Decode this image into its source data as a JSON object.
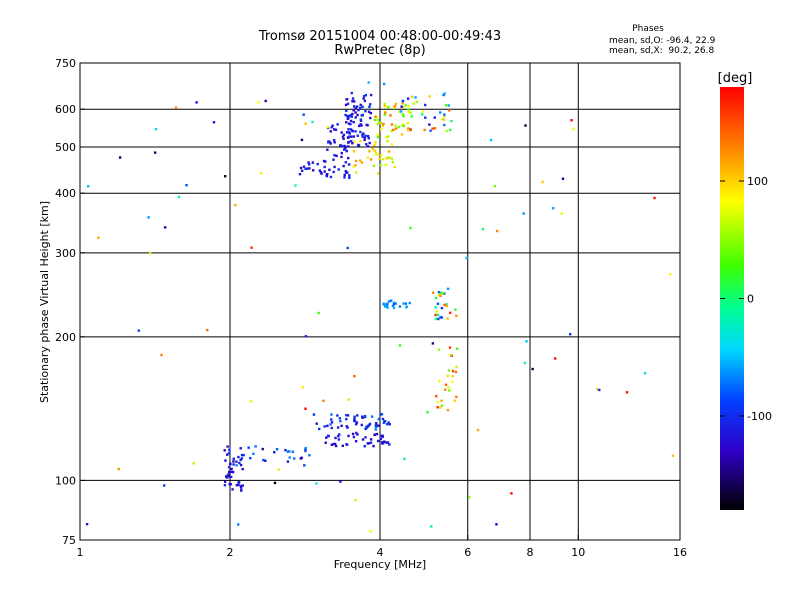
{
  "chart_data": {
    "type": "scatter",
    "title": "Tromsø 20151004 00:48:00-00:49:43",
    "subtitle": "RwPretec (8p)",
    "xlabel": "Frequency [MHz]",
    "ylabel": "Stationary phase Virtual Height [km]",
    "xscale": "log",
    "yscale": "log",
    "xlim": [
      1,
      16
    ],
    "ylim": [
      75,
      750
    ],
    "xticks": [
      1,
      2,
      4,
      6,
      8,
      10,
      16
    ],
    "yticks": [
      75,
      100,
      200,
      300,
      400,
      500,
      600,
      750
    ],
    "grid_x": [
      2,
      4,
      6,
      8,
      10
    ],
    "grid_y": [
      100,
      200,
      300,
      400,
      500,
      600
    ],
    "grid": true,
    "phase_stats": {
      "heading": "Phases",
      "line_o": "mean, sd,O: -96.4, 22.9",
      "line_x": "mean, sd,X:  90.2, 26.8"
    },
    "colorbar": {
      "label": "[deg]",
      "range": [
        -180,
        180
      ],
      "ticks": [
        100,
        0,
        -100
      ],
      "colormap": "rainbow"
    },
    "clusters": [
      {
        "xr": [
          1.95,
          2.12
        ],
        "yr": [
          95,
          118
        ],
        "n": 45,
        "pr": [
          -130,
          -100
        ]
      },
      {
        "xr": [
          2.05,
          2.9
        ],
        "yr": [
          107,
          118
        ],
        "n": 25,
        "pr": [
          -140,
          -60
        ]
      },
      {
        "xr": [
          2.9,
          4.2
        ],
        "yr": [
          128,
          138
        ],
        "n": 55,
        "pr": [
          -130,
          -70
        ]
      },
      {
        "xr": [
          3.1,
          4.2
        ],
        "yr": [
          118,
          126
        ],
        "n": 45,
        "pr": [
          -135,
          -100
        ]
      },
      {
        "xr": [
          4.0,
          4.7
        ],
        "yr": [
          230,
          240
        ],
        "n": 20,
        "pr": [
          -80,
          -50
        ]
      },
      {
        "xr": [
          5.1,
          5.7
        ],
        "yr": [
          215,
          250
        ],
        "n": 25,
        "pr": [
          -140,
          180
        ]
      },
      {
        "xr": [
          5.1,
          5.7
        ],
        "yr": [
          140,
          190
        ],
        "n": 25,
        "pr": [
          40,
          180
        ]
      },
      {
        "xr": [
          2.75,
          3.2
        ],
        "yr": [
          425,
          470
        ],
        "n": 20,
        "pr": [
          -130,
          -100
        ]
      },
      {
        "xr": [
          3.1,
          3.5
        ],
        "yr": [
          430,
          560
        ],
        "n": 55,
        "pr": [
          -130,
          -100
        ]
      },
      {
        "xr": [
          3.4,
          3.85
        ],
        "yr": [
          500,
          650
        ],
        "n": 80,
        "pr": [
          -130,
          -90
        ]
      },
      {
        "xr": [
          3.5,
          4.3
        ],
        "yr": [
          440,
          520
        ],
        "n": 35,
        "pr": [
          50,
          130
        ]
      },
      {
        "xr": [
          3.9,
          4.6
        ],
        "yr": [
          520,
          620
        ],
        "n": 45,
        "pr": [
          30,
          140
        ]
      },
      {
        "xr": [
          4.4,
          5.6
        ],
        "yr": [
          540,
          650
        ],
        "n": 40,
        "pr": [
          -130,
          170
        ]
      }
    ]
  }
}
